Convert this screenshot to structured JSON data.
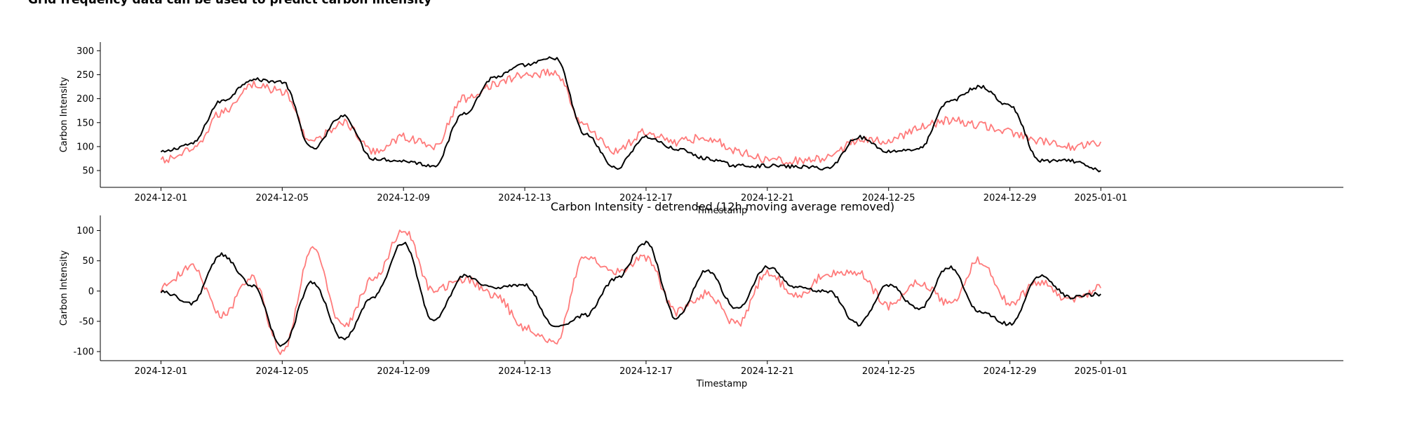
{
  "figure": {
    "suptitle": "Grid frequency data can be used to predict carbon intensity"
  },
  "colors": {
    "series_actual": "#000000",
    "series_predicted": "#ff7b7b"
  },
  "chart_data": [
    {
      "type": "line",
      "title": "",
      "xlabel": "Timestamp",
      "ylabel": "Carbon Intensity",
      "xlim": [
        "2024-11-29",
        "2025-01-09"
      ],
      "ylim": [
        15,
        318
      ],
      "x_ticks": [
        "2024-12-01",
        "2024-12-05",
        "2024-12-09",
        "2024-12-13",
        "2024-12-17",
        "2024-12-21",
        "2024-12-25",
        "2024-12-29",
        "2025-01-01"
      ],
      "y_ticks": [
        "50",
        "100",
        "150",
        "200",
        "250",
        "300"
      ],
      "grid": false,
      "x_daily": [
        "2024-12-01",
        "2024-12-02",
        "2024-12-03",
        "2024-12-04",
        "2024-12-05",
        "2024-12-06",
        "2024-12-07",
        "2024-12-08",
        "2024-12-09",
        "2024-12-10",
        "2024-12-11",
        "2024-12-12",
        "2024-12-13",
        "2024-12-14",
        "2024-12-15",
        "2024-12-16",
        "2024-12-17",
        "2024-12-18",
        "2024-12-19",
        "2024-12-20",
        "2024-12-21",
        "2024-12-22",
        "2024-12-23",
        "2024-12-24",
        "2024-12-25",
        "2024-12-26",
        "2024-12-27",
        "2024-12-28",
        "2024-12-29",
        "2024-12-30",
        "2024-12-31",
        "2025-01-01"
      ],
      "series": [
        {
          "color": "#000000",
          "values": [
            88,
            105,
            195,
            240,
            235,
            95,
            165,
            75,
            70,
            60,
            170,
            245,
            270,
            285,
            125,
            55,
            120,
            95,
            75,
            60,
            60,
            58,
            55,
            120,
            90,
            95,
            195,
            225,
            185,
            70,
            70,
            50
          ]
        },
        {
          "color": "#ff7b7b",
          "values": [
            70,
            90,
            170,
            230,
            215,
            110,
            150,
            90,
            120,
            100,
            200,
            230,
            250,
            255,
            140,
            90,
            130,
            110,
            120,
            90,
            75,
            70,
            75,
            115,
            110,
            140,
            155,
            145,
            130,
            110,
            100,
            110
          ]
        }
      ]
    },
    {
      "type": "line",
      "title": "Carbon Intensity - detrended (12h moving average removed)",
      "xlabel": "Timestamp",
      "ylabel": "Carbon Intensity",
      "xlim": [
        "2024-11-29",
        "2025-01-09"
      ],
      "ylim": [
        -115,
        125
      ],
      "x_ticks": [
        "2024-12-01",
        "2024-12-05",
        "2024-12-09",
        "2024-12-13",
        "2024-12-17",
        "2024-12-21",
        "2024-12-25",
        "2024-12-29",
        "2025-01-01"
      ],
      "y_ticks": [
        "100",
        "50",
        "0",
        "-50",
        "-100"
      ],
      "grid": false,
      "x_daily": [
        "2024-12-01",
        "2024-12-02",
        "2024-12-03",
        "2024-12-04",
        "2024-12-05",
        "2024-12-06",
        "2024-12-07",
        "2024-12-08",
        "2024-12-09",
        "2024-12-10",
        "2024-12-11",
        "2024-12-12",
        "2024-12-13",
        "2024-12-14",
        "2024-12-15",
        "2024-12-16",
        "2024-12-17",
        "2024-12-18",
        "2024-12-19",
        "2024-12-20",
        "2024-12-21",
        "2024-12-22",
        "2024-12-23",
        "2024-12-24",
        "2024-12-25",
        "2024-12-26",
        "2024-12-27",
        "2024-12-28",
        "2024-12-29",
        "2024-12-30",
        "2024-12-31",
        "2025-01-01"
      ],
      "series": [
        {
          "color": "#000000",
          "values": [
            0,
            -20,
            60,
            10,
            -90,
            15,
            -80,
            -10,
            80,
            -50,
            25,
            5,
            10,
            -60,
            -40,
            20,
            80,
            -45,
            35,
            -30,
            40,
            5,
            0,
            -55,
            10,
            -30,
            40,
            -35,
            -55,
            25,
            -10,
            -5
          ]
        },
        {
          "color": "#ff7b7b",
          "values": [
            5,
            40,
            -40,
            20,
            -100,
            70,
            -60,
            20,
            100,
            0,
            20,
            -5,
            -60,
            -85,
            60,
            30,
            55,
            -35,
            -5,
            -55,
            30,
            -10,
            30,
            30,
            -25,
            15,
            -20,
            50,
            -20,
            15,
            -15,
            5
          ]
        }
      ]
    }
  ]
}
